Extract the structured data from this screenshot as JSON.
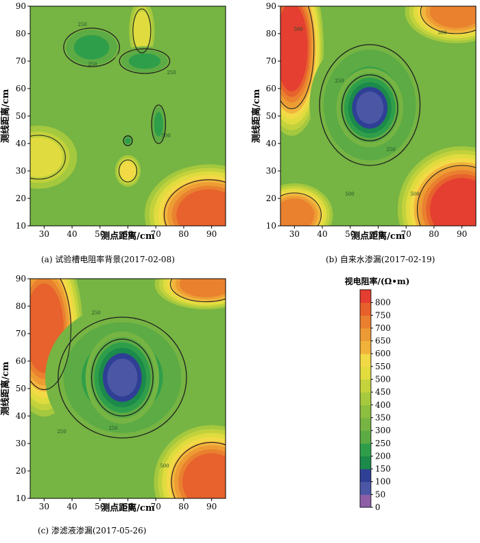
{
  "chart_data": [
    {
      "type": "contour",
      "caption": "(a)  试验槽电阻率背景(2017-02-08)",
      "xlabel": "测点距离/cm",
      "ylabel": "测线距离/cm",
      "xlim": [
        25,
        95
      ],
      "ylim": [
        10,
        90
      ],
      "xticks": [
        "30",
        "40",
        "50",
        "60",
        "70",
        "80",
        "90"
      ],
      "yticks": [
        "10",
        "20",
        "30",
        "40",
        "50",
        "60",
        "70",
        "80",
        "90"
      ],
      "contour_labels": [
        "250",
        "250",
        "250",
        "500"
      ],
      "features": [
        {
          "type": "low",
          "x": 47,
          "y": 75,
          "rx": 10,
          "ry": 7,
          "value": 250
        },
        {
          "type": "low",
          "x": 66,
          "y": 70,
          "rx": 9,
          "ry": 4.5,
          "value": 250
        },
        {
          "type": "low",
          "x": 71,
          "y": 47,
          "rx": 2.5,
          "ry": 7,
          "value": 250
        },
        {
          "type": "low",
          "x": 60,
          "y": 41,
          "rx": 1.6,
          "ry": 1.8,
          "value": 250
        },
        {
          "type": "high",
          "x": 89,
          "y": 14,
          "rx": 10,
          "ry": 8,
          "value": 700
        },
        {
          "type": "high",
          "x": 65,
          "y": 81,
          "rx": 2,
          "ry": 5,
          "value": 450
        },
        {
          "type": "high",
          "x": 60,
          "y": 30,
          "rx": 2,
          "ry": 2.5,
          "value": 500
        },
        {
          "type": "high",
          "x": 28,
          "y": 35,
          "rx": 6,
          "ry": 5,
          "value": 450
        }
      ]
    },
    {
      "type": "contour",
      "caption": "(b)  自来水渗漏(2017-02-19)",
      "xlabel": "测点距离/cm",
      "ylabel": "测线距离/cm",
      "xlim": [
        25,
        95
      ],
      "ylim": [
        10,
        90
      ],
      "xticks": [
        "30",
        "40",
        "50",
        "60",
        "70",
        "80",
        "90"
      ],
      "yticks": [
        "10",
        "20",
        "30",
        "40",
        "50",
        "60",
        "70",
        "80",
        "90"
      ],
      "contour_labels": [
        "500",
        "500",
        "250",
        "250",
        "500",
        "500"
      ],
      "features": [
        {
          "type": "low",
          "x": 57,
          "y": 54,
          "rx": 18,
          "ry": 22,
          "value": 250
        },
        {
          "type": "low",
          "x": 57,
          "y": 53,
          "rx": 10,
          "ry": 12,
          "value": 80
        },
        {
          "type": "high",
          "x": 29,
          "y": 75,
          "rx": 5,
          "ry": 14,
          "value": 750
        },
        {
          "type": "high",
          "x": 90,
          "y": 16,
          "rx": 10,
          "ry": 10,
          "value": 750
        },
        {
          "type": "high",
          "x": 30,
          "y": 14,
          "rx": 6,
          "ry": 5,
          "value": 650
        },
        {
          "type": "high",
          "x": 88,
          "y": 88,
          "rx": 8,
          "ry": 5,
          "value": 650
        }
      ]
    },
    {
      "type": "contour",
      "caption": "(c)  渗滤液渗漏(2017-05-26)",
      "xlabel": "测点距离/cm",
      "ylabel": "测线距离/cm",
      "xlim": [
        25,
        95
      ],
      "ylim": [
        10,
        90
      ],
      "xticks": [
        "30",
        "40",
        "50",
        "60",
        "70",
        "80",
        "90"
      ],
      "yticks": [
        "10",
        "20",
        "30",
        "40",
        "50",
        "60",
        "70",
        "80",
        "90"
      ],
      "contour_labels": [
        "250",
        "250",
        "250",
        "500"
      ],
      "features": [
        {
          "type": "low",
          "x": 58,
          "y": 54,
          "rx": 23,
          "ry": 22,
          "value": 250
        },
        {
          "type": "low",
          "x": 58,
          "y": 54,
          "rx": 11,
          "ry": 14,
          "value": 80
        },
        {
          "type": "high",
          "x": 30,
          "y": 72,
          "rx": 6,
          "ry": 14,
          "value": 700
        },
        {
          "type": "high",
          "x": 90,
          "y": 16,
          "rx": 9,
          "ry": 9,
          "value": 700
        },
        {
          "type": "high",
          "x": 88,
          "y": 88,
          "rx": 8,
          "ry": 4,
          "value": 650
        }
      ]
    }
  ],
  "colorbar": {
    "title": "视电阻率/(Ω•m)",
    "ticks": [
      "0",
      "50",
      "100",
      "150",
      "200",
      "250",
      "300",
      "350",
      "400",
      "450",
      "500",
      "550",
      "600",
      "650",
      "700",
      "750",
      "800"
    ],
    "colors": [
      "#8e5fa7",
      "#4b57a5",
      "#2f3f95",
      "#1b8a4a",
      "#2f9e4a",
      "#5cab44",
      "#76b443",
      "#8cbe40",
      "#a7c93e",
      "#c4d33c",
      "#e2dc3f",
      "#f2d947",
      "#f1b23c",
      "#ec9b34",
      "#e97f2f",
      "#e7602c",
      "#e43d31"
    ]
  }
}
